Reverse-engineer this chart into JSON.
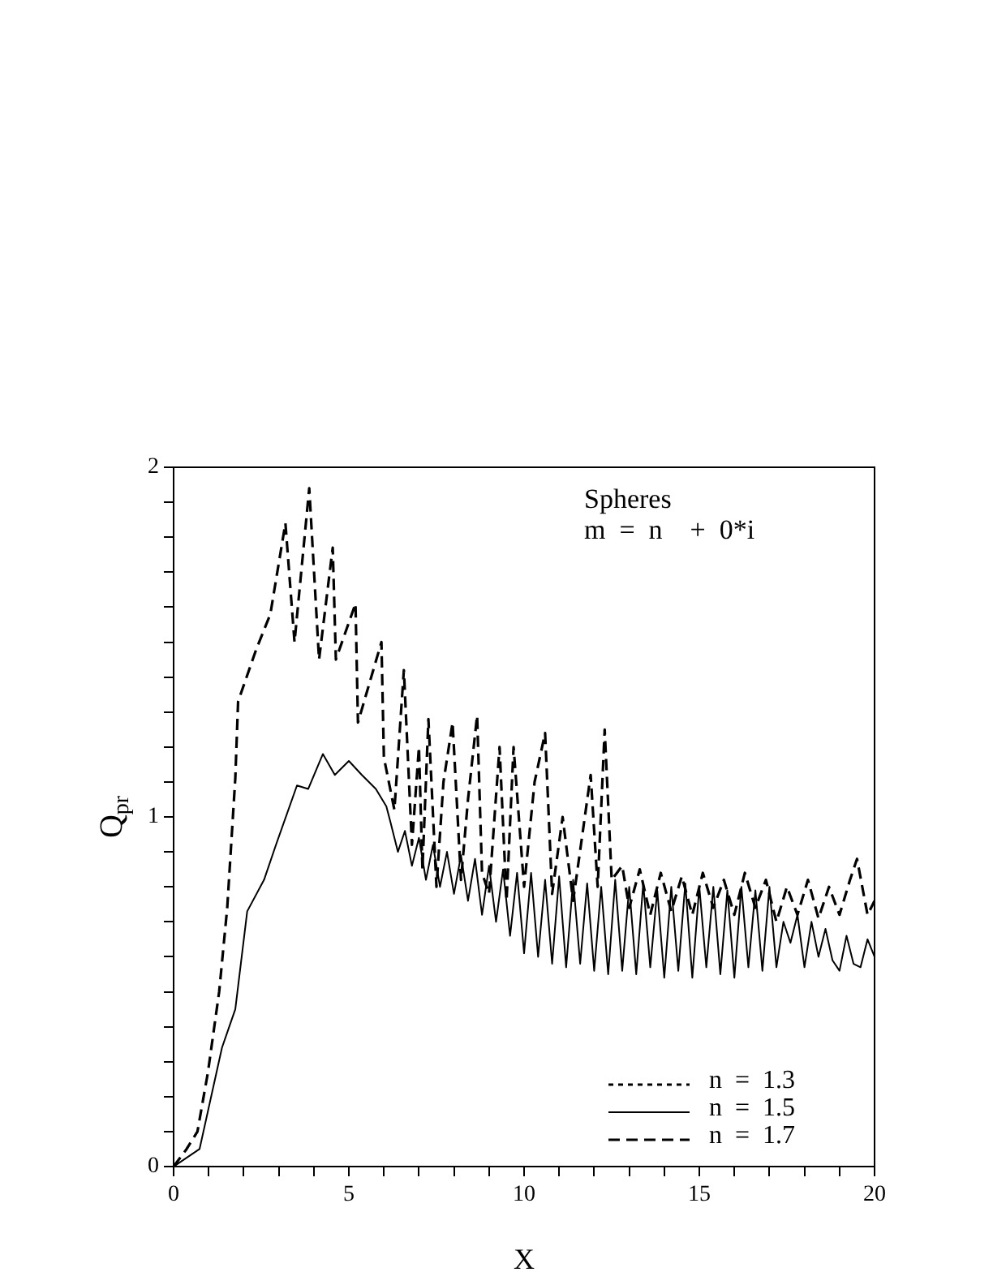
{
  "chart_data": {
    "type": "line",
    "xlabel": "X",
    "ylabel": "Q$_{pr}$",
    "annotations": [
      "Spheres",
      "m  =  n    +  0*i"
    ],
    "xlim": [
      0,
      20
    ],
    "xticks": [
      0,
      {
        "value": 1,
        "label": null
      },
      {
        "value": 2,
        "label": null
      },
      {
        "value": 3,
        "label": null
      },
      {
        "value": 4,
        "label": null
      },
      5,
      {
        "value": 6,
        "label": null
      },
      {
        "value": 7,
        "label": null
      },
      {
        "value": 8,
        "label": null
      },
      {
        "value": 9,
        "label": null
      },
      10,
      {
        "value": 11,
        "label": null
      },
      {
        "value": 12,
        "label": null
      },
      {
        "value": 13,
        "label": null
      },
      {
        "value": 14,
        "label": null
      },
      15,
      {
        "value": 16,
        "label": null
      },
      {
        "value": 17,
        "label": null
      },
      {
        "value": 18,
        "label": null
      },
      {
        "value": 19,
        "label": null
      },
      20
    ],
    "ylim": [
      0,
      2
    ],
    "yticks": [
      0,
      {
        "value": 0.1,
        "label": null
      },
      {
        "value": 0.2,
        "label": null
      },
      {
        "value": 0.3,
        "label": null
      },
      {
        "value": 0.4,
        "label": null
      },
      {
        "value": 0.5,
        "label": null
      },
      {
        "value": 0.6,
        "label": null
      },
      {
        "value": 0.7,
        "label": null
      },
      {
        "value": 0.8,
        "label": null
      },
      {
        "value": 0.9,
        "label": null
      },
      1,
      {
        "value": 1.1,
        "label": null
      },
      {
        "value": 1.2,
        "label": null
      },
      {
        "value": 1.3,
        "label": null
      },
      {
        "value": 1.4,
        "label": null
      },
      {
        "value": 1.5,
        "label": null
      },
      {
        "value": 1.6,
        "label": null
      },
      {
        "value": 1.7,
        "label": null
      },
      {
        "value": 1.8,
        "label": null
      },
      {
        "value": 1.9,
        "label": null
      },
      2
    ],
    "grid": false,
    "legend": "bottom right",
    "marker": "none",
    "series": [
      {
        "name": "n  =  1.3",
        "color": "#000000",
        "line_style": "dotted"
      },
      {
        "name": "n  =  1.5",
        "color": "#000000",
        "line_style": "solid",
        "x": [
          0,
          0.74,
          1.38,
          1.76,
          2.1,
          2.58,
          2.92,
          3.52,
          3.84,
          4.26,
          4.6,
          5.0,
          5.37,
          5.77,
          6.07,
          6.2,
          6.4,
          6.6,
          6.8,
          7.0,
          7.2,
          7.4,
          7.6,
          7.8,
          8.0,
          8.2,
          8.4,
          8.6,
          8.8,
          9.0,
          9.2,
          9.4,
          9.6,
          9.8,
          10.0,
          10.2,
          10.4,
          10.6,
          10.8,
          11.0,
          11.2,
          11.4,
          11.6,
          11.8,
          12.0,
          12.2,
          12.4,
          12.6,
          12.8,
          13.0,
          13.2,
          13.4,
          13.6,
          13.8,
          14.0,
          14.2,
          14.4,
          14.6,
          14.8,
          15.0,
          15.2,
          15.4,
          15.6,
          15.8,
          16.0,
          16.2,
          16.4,
          16.6,
          16.8,
          17.0,
          17.2,
          17.4,
          17.6,
          17.8,
          18.0,
          18.2,
          18.4,
          18.6,
          18.8,
          19.0,
          19.2,
          19.4,
          19.6,
          19.8,
          20.0
        ],
        "values": [
          0,
          0.05,
          0.34,
          0.45,
          0.73,
          0.82,
          0.92,
          1.09,
          1.08,
          1.18,
          1.12,
          1.16,
          1.12,
          1.08,
          1.03,
          0.98,
          0.9,
          0.96,
          0.86,
          0.94,
          0.82,
          0.92,
          0.8,
          0.9,
          0.78,
          0.89,
          0.76,
          0.88,
          0.72,
          0.86,
          0.7,
          0.85,
          0.66,
          0.84,
          0.61,
          0.84,
          0.6,
          0.82,
          0.58,
          0.83,
          0.57,
          0.82,
          0.58,
          0.81,
          0.56,
          0.8,
          0.55,
          0.82,
          0.56,
          0.8,
          0.55,
          0.81,
          0.57,
          0.79,
          0.54,
          0.8,
          0.56,
          0.81,
          0.54,
          0.8,
          0.57,
          0.8,
          0.55,
          0.79,
          0.54,
          0.8,
          0.57,
          0.79,
          0.56,
          0.8,
          0.57,
          0.7,
          0.64,
          0.72,
          0.57,
          0.7,
          0.6,
          0.68,
          0.59,
          0.56,
          0.66,
          0.58,
          0.57,
          0.65,
          0.6
        ]
      },
      {
        "name": "n  =  1.7",
        "color": "#000000",
        "line_style": "dashed",
        "x": [
          0,
          0.37,
          0.68,
          0.98,
          1.3,
          1.53,
          1.76,
          1.84,
          2.36,
          2.76,
          3.19,
          3.45,
          3.87,
          4.15,
          4.54,
          4.63,
          5.19,
          5.26,
          5.93,
          6.0,
          6.3,
          6.57,
          6.8,
          7.0,
          7.1,
          7.27,
          7.5,
          7.7,
          7.96,
          8.2,
          8.4,
          8.66,
          8.8,
          9.0,
          9.3,
          9.5,
          9.7,
          10.0,
          10.3,
          10.6,
          10.8,
          11.1,
          11.4,
          11.9,
          12.1,
          12.3,
          12.5,
          12.8,
          13.0,
          13.3,
          13.6,
          13.9,
          14.2,
          14.5,
          14.8,
          15.1,
          15.4,
          15.7,
          16.0,
          16.3,
          16.6,
          16.9,
          17.2,
          17.5,
          17.8,
          18.1,
          18.4,
          18.7,
          19.0,
          19.3,
          19.5,
          19.8,
          20.0
        ],
        "values": [
          0,
          0.05,
          0.1,
          0.27,
          0.5,
          0.74,
          1.11,
          1.33,
          1.48,
          1.58,
          1.84,
          1.5,
          1.94,
          1.45,
          1.77,
          1.45,
          1.61,
          1.27,
          1.5,
          1.17,
          1.02,
          1.42,
          0.92,
          1.2,
          0.85,
          1.28,
          0.8,
          1.1,
          1.27,
          0.82,
          1.05,
          1.29,
          0.84,
          0.78,
          1.2,
          0.76,
          1.2,
          0.8,
          1.1,
          1.24,
          0.78,
          1.0,
          0.76,
          1.12,
          0.8,
          1.25,
          0.82,
          0.86,
          0.74,
          0.85,
          0.72,
          0.84,
          0.73,
          0.83,
          0.72,
          0.84,
          0.74,
          0.82,
          0.72,
          0.84,
          0.74,
          0.82,
          0.7,
          0.8,
          0.72,
          0.82,
          0.71,
          0.8,
          0.72,
          0.82,
          0.88,
          0.72,
          0.76
        ]
      }
    ]
  }
}
